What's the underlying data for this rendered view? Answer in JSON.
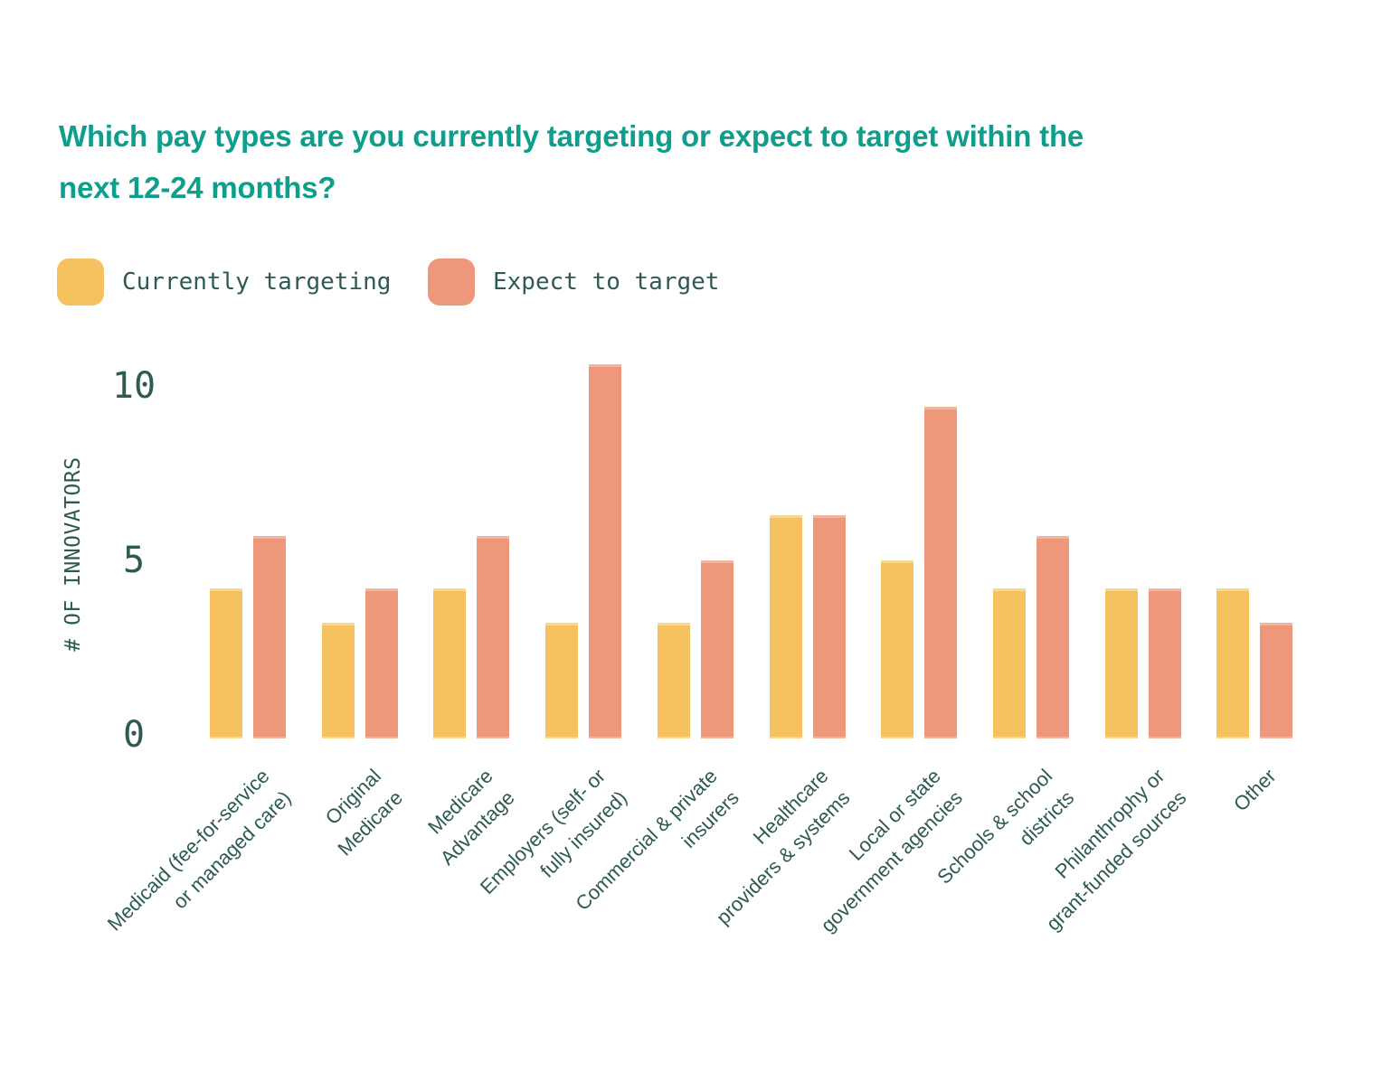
{
  "figure": {
    "title_lines": [
      "Which pay types are you currently targeting or expect to target within the",
      "next 12-24 months?"
    ]
  },
  "legend": {
    "items": [
      {
        "label": "Currently targeting",
        "color": "#F5C25F"
      },
      {
        "label": "Expect to target",
        "color": "#EF977A"
      }
    ]
  },
  "y_axis": {
    "label": "# OF INNOVATORS",
    "ticks": [
      0,
      5,
      10
    ]
  },
  "colors": {
    "background": "#FFFFFF",
    "title": "#0D9E8C",
    "axis_text": "#2E5A53",
    "currently_targeting": "#F5C25F",
    "expect_to_target": "#EF977A"
  },
  "chart_data": {
    "type": "bar",
    "title": "Which pay types are you currently targeting or expect to target within the next 12-24 months?",
    "xlabel": "",
    "ylabel": "# OF INNOVATORS",
    "yticks": [
      0,
      5,
      10
    ],
    "ylim": [
      0,
      10.7
    ],
    "grid": false,
    "legend_position": "top-left",
    "categories": [
      "Medicaid (fee-for-service\nor managed care)",
      "Original\nMedicare",
      "Medicare\nAdvantage",
      "Employers (self- or\nfully insured)",
      "Commercial & private\ninsurers",
      "Healthcare\nproviders & systems",
      "Local or state\ngovernment agencies",
      "Schools & school\ndistricts",
      "Philanthrophy or\ngrant-funded sources",
      "Other"
    ],
    "series": [
      {
        "name": "Currently targeting",
        "color": "#F5C25F",
        "edge_color": "#F8D88E",
        "values": [
          4.3,
          3.3,
          4.3,
          3.3,
          3.3,
          6.4,
          5.1,
          4.3,
          4.3,
          4.3
        ]
      },
      {
        "name": "Expect to target",
        "color": "#EF977A",
        "edge_color": "#F2B59E",
        "values": [
          5.8,
          4.3,
          5.8,
          10.7,
          5.1,
          6.4,
          9.5,
          5.8,
          4.3,
          3.3
        ]
      }
    ]
  }
}
